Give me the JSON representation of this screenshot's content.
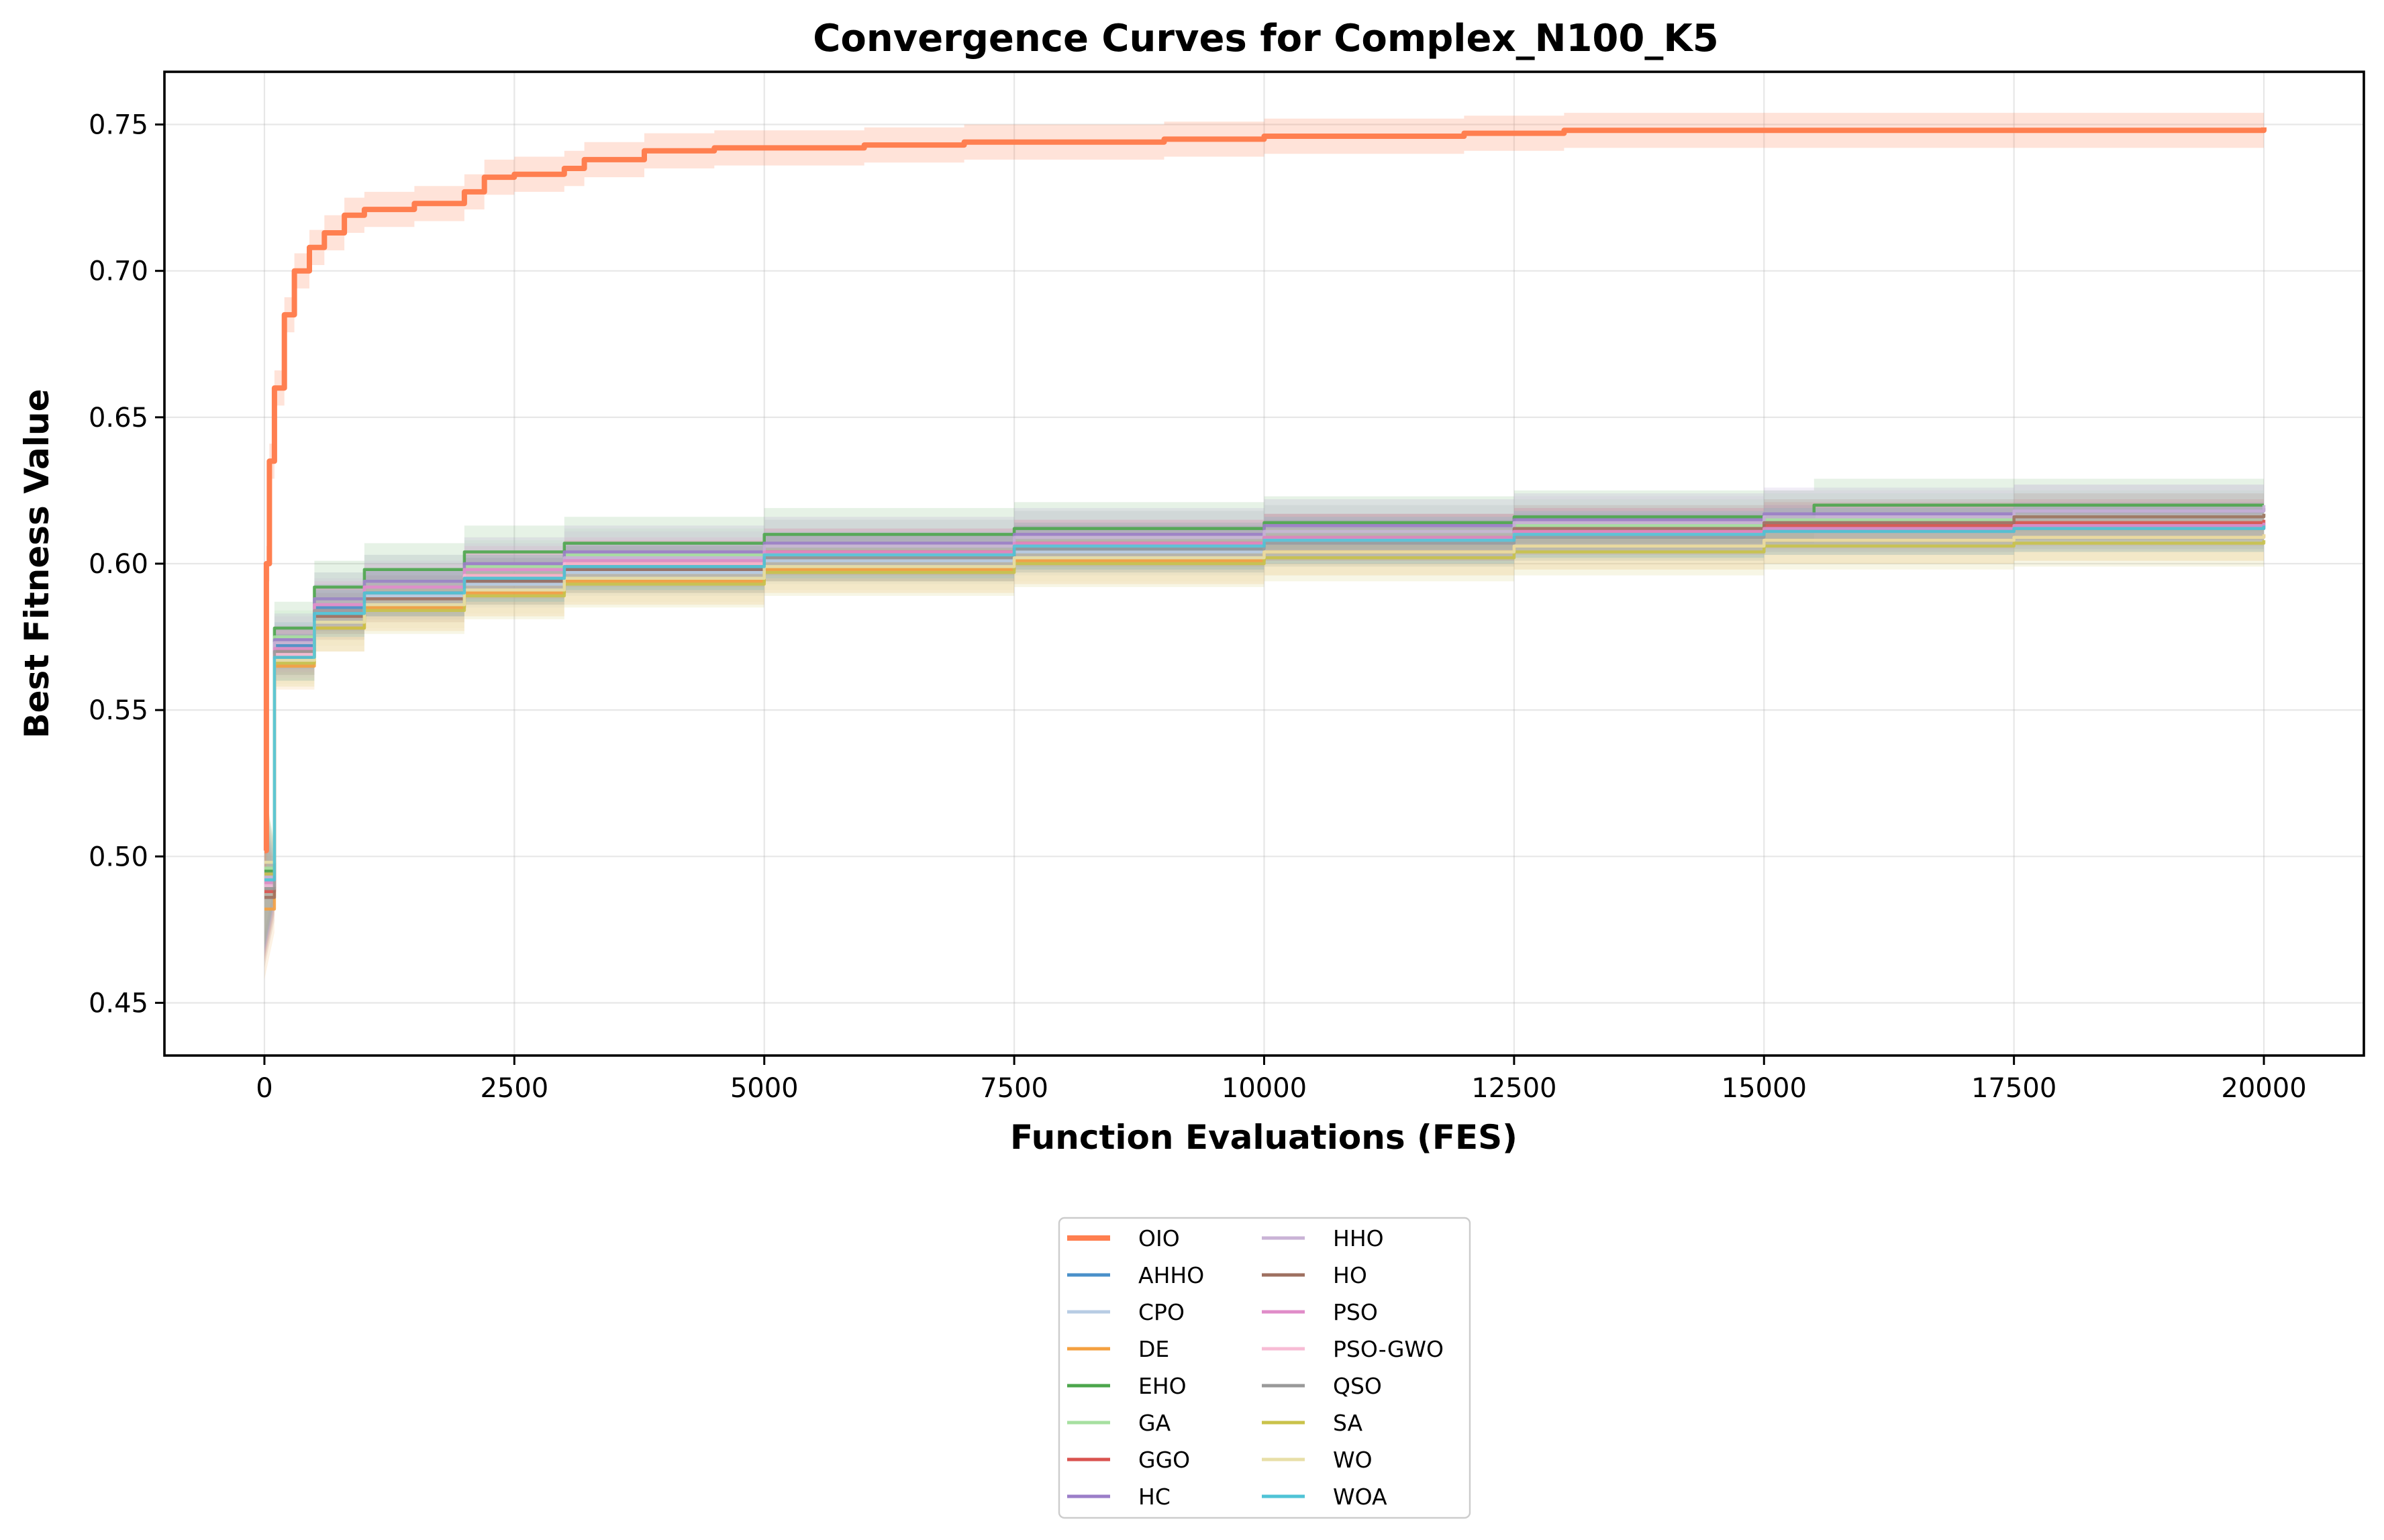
{
  "chart_data": {
    "type": "line",
    "title": "Convergence Curves for Complex_N100_K5",
    "xlabel": "Function Evaluations (FES)",
    "ylabel": "Best Fitness Value",
    "xlim": [
      -1000,
      21000
    ],
    "ylim": [
      0.432,
      0.768
    ],
    "xticks": [
      0,
      2500,
      5000,
      7500,
      10000,
      12500,
      15000,
      17500,
      20000
    ],
    "yticks": [
      0.45,
      0.5,
      0.55,
      0.6,
      0.65,
      0.7,
      0.75
    ],
    "xtick_labels": [
      "0",
      "2500",
      "5000",
      "7500",
      "10000",
      "12500",
      "15000",
      "17500",
      "20000"
    ],
    "ytick_labels": [
      "0.45",
      "0.50",
      "0.55",
      "0.60",
      "0.65",
      "0.70",
      "0.75"
    ],
    "grid": true,
    "legend": {
      "position": "below-center",
      "columns": 2
    },
    "series": [
      {
        "name": "OIO",
        "color": "#ff7f50",
        "band": 0.006,
        "highlight": true,
        "points": [
          [
            0,
            0.502
          ],
          [
            20,
            0.6
          ],
          [
            50,
            0.635
          ],
          [
            100,
            0.66
          ],
          [
            200,
            0.685
          ],
          [
            300,
            0.7
          ],
          [
            450,
            0.708
          ],
          [
            600,
            0.713
          ],
          [
            800,
            0.719
          ],
          [
            1000,
            0.721
          ],
          [
            1500,
            0.723
          ],
          [
            2000,
            0.727
          ],
          [
            2200,
            0.732
          ],
          [
            2500,
            0.733
          ],
          [
            3000,
            0.735
          ],
          [
            3200,
            0.738
          ],
          [
            3800,
            0.741
          ],
          [
            4500,
            0.742
          ],
          [
            5000,
            0.742
          ],
          [
            6000,
            0.743
          ],
          [
            7000,
            0.744
          ],
          [
            9000,
            0.745
          ],
          [
            10000,
            0.746
          ],
          [
            11000,
            0.746
          ],
          [
            12000,
            0.747
          ],
          [
            13000,
            0.748
          ],
          [
            16500,
            0.748
          ],
          [
            20000,
            0.749
          ]
        ]
      },
      {
        "name": "AHHO",
        "color": "#4a90c9",
        "band": 0.008,
        "points": [
          [
            0,
            0.49
          ],
          [
            100,
            0.572
          ],
          [
            500,
            0.585
          ],
          [
            1000,
            0.59
          ],
          [
            2000,
            0.594
          ],
          [
            3000,
            0.598
          ],
          [
            5000,
            0.602
          ],
          [
            7500,
            0.605
          ],
          [
            10000,
            0.608
          ],
          [
            12500,
            0.61
          ],
          [
            15000,
            0.612
          ],
          [
            17500,
            0.613
          ],
          [
            20000,
            0.614
          ]
        ]
      },
      {
        "name": "CPO",
        "color": "#b8cce4",
        "band": 0.008,
        "points": [
          [
            0,
            0.492
          ],
          [
            100,
            0.57
          ],
          [
            500,
            0.583
          ],
          [
            1000,
            0.589
          ],
          [
            2000,
            0.593
          ],
          [
            3000,
            0.597
          ],
          [
            5000,
            0.601
          ],
          [
            7500,
            0.604
          ],
          [
            10000,
            0.607
          ],
          [
            12500,
            0.609
          ],
          [
            15000,
            0.611
          ],
          [
            17500,
            0.612
          ],
          [
            20000,
            0.613
          ]
        ]
      },
      {
        "name": "DE",
        "color": "#f4a040",
        "band": 0.008,
        "points": [
          [
            0,
            0.482
          ],
          [
            100,
            0.565
          ],
          [
            500,
            0.578
          ],
          [
            1000,
            0.585
          ],
          [
            2000,
            0.59
          ],
          [
            3000,
            0.594
          ],
          [
            5000,
            0.598
          ],
          [
            7500,
            0.601
          ],
          [
            10000,
            0.604
          ],
          [
            12500,
            0.606
          ],
          [
            15000,
            0.608
          ],
          [
            17500,
            0.609
          ],
          [
            20000,
            0.61
          ]
        ]
      },
      {
        "name": "EHO",
        "color": "#4ca64c",
        "band": 0.009,
        "points": [
          [
            0,
            0.495
          ],
          [
            100,
            0.578
          ],
          [
            500,
            0.592
          ],
          [
            1000,
            0.598
          ],
          [
            2000,
            0.604
          ],
          [
            3000,
            0.607
          ],
          [
            5000,
            0.61
          ],
          [
            7500,
            0.612
          ],
          [
            10000,
            0.614
          ],
          [
            12500,
            0.616
          ],
          [
            15500,
            0.62
          ],
          [
            17500,
            0.62
          ],
          [
            20000,
            0.62
          ]
        ]
      },
      {
        "name": "GA",
        "color": "#a6e0a0",
        "band": 0.009,
        "points": [
          [
            0,
            0.496
          ],
          [
            100,
            0.575
          ],
          [
            500,
            0.588
          ],
          [
            1000,
            0.594
          ],
          [
            2000,
            0.599
          ],
          [
            3000,
            0.603
          ],
          [
            5000,
            0.606
          ],
          [
            7500,
            0.609
          ],
          [
            10000,
            0.611
          ],
          [
            12500,
            0.613
          ],
          [
            15000,
            0.615
          ],
          [
            17500,
            0.616
          ],
          [
            20000,
            0.617
          ]
        ]
      },
      {
        "name": "GGO",
        "color": "#d9534f",
        "band": 0.008,
        "points": [
          [
            0,
            0.488
          ],
          [
            100,
            0.57
          ],
          [
            500,
            0.584
          ],
          [
            1000,
            0.59
          ],
          [
            2000,
            0.596
          ],
          [
            3000,
            0.6
          ],
          [
            5000,
            0.604
          ],
          [
            7500,
            0.607
          ],
          [
            10000,
            0.609
          ],
          [
            12500,
            0.611
          ],
          [
            15000,
            0.613
          ],
          [
            17500,
            0.614
          ],
          [
            20000,
            0.615
          ]
        ]
      },
      {
        "name": "HC",
        "color": "#9b7ec8",
        "band": 0.009,
        "points": [
          [
            0,
            0.494
          ],
          [
            100,
            0.574
          ],
          [
            500,
            0.588
          ],
          [
            1000,
            0.594
          ],
          [
            2000,
            0.6
          ],
          [
            3000,
            0.604
          ],
          [
            5000,
            0.607
          ],
          [
            7500,
            0.61
          ],
          [
            10000,
            0.613
          ],
          [
            12500,
            0.615
          ],
          [
            15000,
            0.617
          ],
          [
            17500,
            0.618
          ],
          [
            20000,
            0.619
          ]
        ]
      },
      {
        "name": "HHO",
        "color": "#c9b3d6",
        "band": 0.009,
        "points": [
          [
            0,
            0.493
          ],
          [
            100,
            0.573
          ],
          [
            500,
            0.586
          ],
          [
            1000,
            0.592
          ],
          [
            2000,
            0.598
          ],
          [
            3000,
            0.602
          ],
          [
            5000,
            0.606
          ],
          [
            7500,
            0.609
          ],
          [
            10000,
            0.611
          ],
          [
            12500,
            0.614
          ],
          [
            15000,
            0.616
          ],
          [
            17500,
            0.618
          ],
          [
            20000,
            0.62
          ]
        ]
      },
      {
        "name": "HO",
        "color": "#9e7060",
        "band": 0.008,
        "points": [
          [
            0,
            0.486
          ],
          [
            100,
            0.568
          ],
          [
            500,
            0.582
          ],
          [
            1000,
            0.588
          ],
          [
            2000,
            0.594
          ],
          [
            3000,
            0.598
          ],
          [
            5000,
            0.602
          ],
          [
            7500,
            0.606
          ],
          [
            10000,
            0.609
          ],
          [
            12500,
            0.612
          ],
          [
            15000,
            0.614
          ],
          [
            17500,
            0.616
          ],
          [
            20000,
            0.617
          ]
        ]
      },
      {
        "name": "PSO",
        "color": "#e08cc8",
        "band": 0.008,
        "points": [
          [
            0,
            0.491
          ],
          [
            100,
            0.571
          ],
          [
            500,
            0.586
          ],
          [
            1000,
            0.592
          ],
          [
            2000,
            0.598
          ],
          [
            3000,
            0.601
          ],
          [
            5000,
            0.604
          ],
          [
            7500,
            0.607
          ],
          [
            10000,
            0.609
          ],
          [
            12500,
            0.611
          ],
          [
            15000,
            0.612
          ],
          [
            17500,
            0.613
          ],
          [
            20000,
            0.614
          ]
        ]
      },
      {
        "name": "PSO-GWO",
        "color": "#f7bcd5",
        "band": 0.008,
        "points": [
          [
            0,
            0.49
          ],
          [
            100,
            0.569
          ],
          [
            500,
            0.584
          ],
          [
            1000,
            0.59
          ],
          [
            2000,
            0.596
          ],
          [
            3000,
            0.6
          ],
          [
            5000,
            0.603
          ],
          [
            7500,
            0.606
          ],
          [
            10000,
            0.608
          ],
          [
            12500,
            0.61
          ],
          [
            15000,
            0.611
          ],
          [
            17500,
            0.612
          ],
          [
            20000,
            0.613
          ]
        ]
      },
      {
        "name": "QSO",
        "color": "#999999",
        "band": 0.008,
        "points": [
          [
            0,
            0.489
          ],
          [
            100,
            0.57
          ],
          [
            500,
            0.584
          ],
          [
            1000,
            0.59
          ],
          [
            2000,
            0.595
          ],
          [
            3000,
            0.599
          ],
          [
            5000,
            0.602
          ],
          [
            7500,
            0.605
          ],
          [
            10000,
            0.607
          ],
          [
            12500,
            0.609
          ],
          [
            15000,
            0.611
          ],
          [
            17500,
            0.612
          ],
          [
            20000,
            0.613
          ]
        ]
      },
      {
        "name": "SA",
        "color": "#c9c24a",
        "band": 0.008,
        "points": [
          [
            0,
            0.494
          ],
          [
            100,
            0.566
          ],
          [
            500,
            0.578
          ],
          [
            1000,
            0.584
          ],
          [
            2000,
            0.589
          ],
          [
            3000,
            0.593
          ],
          [
            5000,
            0.597
          ],
          [
            7500,
            0.6
          ],
          [
            10000,
            0.602
          ],
          [
            12500,
            0.604
          ],
          [
            15000,
            0.606
          ],
          [
            17500,
            0.607
          ],
          [
            20000,
            0.608
          ]
        ]
      },
      {
        "name": "WO",
        "color": "#e8dfa8",
        "band": 0.008,
        "points": [
          [
            0,
            0.498
          ],
          [
            100,
            0.567
          ],
          [
            500,
            0.58
          ],
          [
            1000,
            0.586
          ],
          [
            2000,
            0.591
          ],
          [
            3000,
            0.595
          ],
          [
            5000,
            0.599
          ],
          [
            7500,
            0.602
          ],
          [
            10000,
            0.604
          ],
          [
            12500,
            0.606
          ],
          [
            15000,
            0.608
          ],
          [
            17500,
            0.609
          ],
          [
            20000,
            0.61
          ]
        ]
      },
      {
        "name": "WOA",
        "color": "#4fc3d6",
        "band": 0.008,
        "points": [
          [
            0,
            0.492
          ],
          [
            100,
            0.568
          ],
          [
            500,
            0.583
          ],
          [
            1000,
            0.59
          ],
          [
            2000,
            0.595
          ],
          [
            3000,
            0.599
          ],
          [
            5000,
            0.603
          ],
          [
            7500,
            0.606
          ],
          [
            10000,
            0.608
          ],
          [
            12500,
            0.61
          ],
          [
            15000,
            0.611
          ],
          [
            17500,
            0.612
          ],
          [
            20000,
            0.613
          ]
        ]
      }
    ]
  }
}
